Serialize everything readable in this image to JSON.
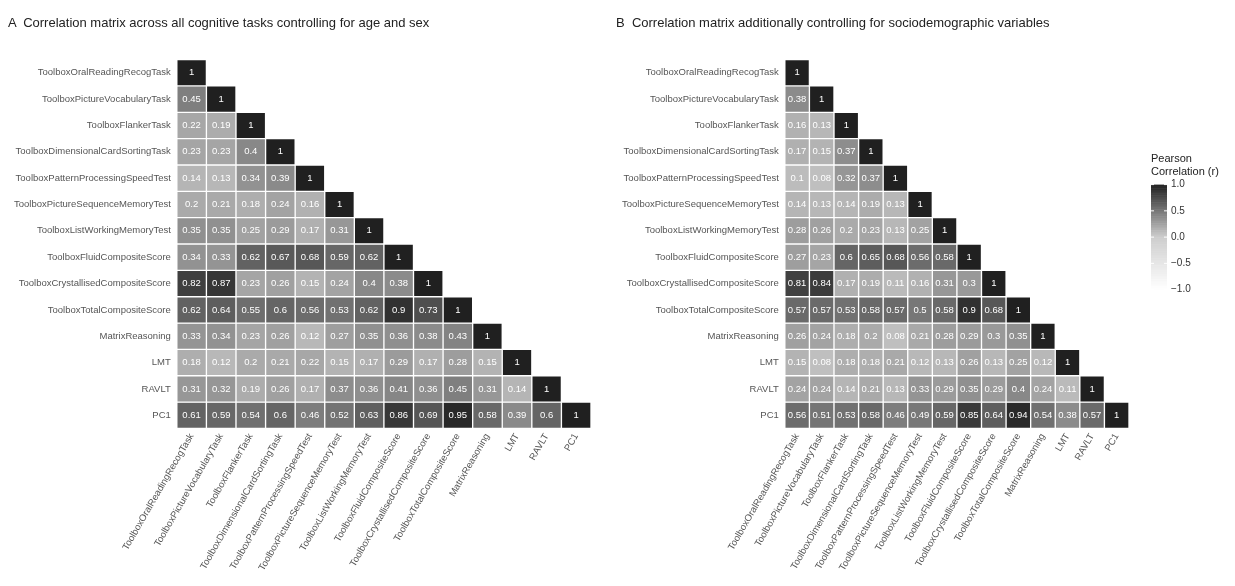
{
  "chart_data": [
    {
      "type": "heatmap",
      "title": "A  Correlation matrix across all cognitive tasks controlling for age and sex",
      "categories": [
        "ToolboxOralReadingRecogTask",
        "ToolboxPictureVocabularyTask",
        "ToolboxFlankerTask",
        "ToolboxDimensionalCardSortingTask",
        "ToolboxPatternProcessingSpeedTest",
        "ToolboxPictureSequenceMemoryTest",
        "ToolboxListWorkingMemoryTest",
        "ToolboxFluidCompositeScore",
        "ToolboxCrystallisedCompositeScore",
        "ToolboxTotalCompositeScore",
        "MatrixReasoning",
        "LMT",
        "RAVLT",
        "PC1"
      ],
      "y_categories": [
        "ToolboxOralReadingRecogTask",
        "ToolboxPictureVocabularyTask",
        "ToolboxFlankerTask",
        "ToolboxDimensionalCardSortingTask",
        "ToolboxPatternProcessingSpeedTest",
        "ToolboxPictureSequenceMemoryTest",
        "ToolboxListWorkingMemoryTest",
        "ToolboxFluidCompositeScore",
        "ToolboxCrystallisedCompositeScore",
        "ToolboxTotalCompositeScore",
        "MatrixReasoning",
        "LMT",
        "RAVLT",
        "PC1"
      ],
      "cells": [
        [
          1,
          null,
          null,
          null,
          null,
          null,
          null,
          null,
          null,
          null,
          null,
          null,
          null,
          null
        ],
        [
          0.45,
          1,
          null,
          null,
          null,
          null,
          null,
          null,
          null,
          null,
          null,
          null,
          null,
          null
        ],
        [
          0.22,
          0.19,
          1,
          null,
          null,
          null,
          null,
          null,
          null,
          null,
          null,
          null,
          null,
          null
        ],
        [
          0.23,
          0.23,
          0.4,
          1,
          null,
          null,
          null,
          null,
          null,
          null,
          null,
          null,
          null,
          null
        ],
        [
          0.14,
          0.13,
          0.34,
          0.39,
          1,
          null,
          null,
          null,
          null,
          null,
          null,
          null,
          null,
          null
        ],
        [
          0.2,
          0.21,
          0.18,
          0.24,
          0.16,
          1,
          null,
          null,
          null,
          null,
          null,
          null,
          null,
          null
        ],
        [
          0.35,
          0.35,
          0.25,
          0.29,
          0.17,
          0.31,
          1,
          null,
          null,
          null,
          null,
          null,
          null,
          null
        ],
        [
          0.34,
          0.33,
          0.62,
          0.67,
          0.68,
          0.59,
          0.62,
          1,
          null,
          null,
          null,
          null,
          null,
          null
        ],
        [
          0.82,
          0.87,
          0.23,
          0.26,
          0.15,
          0.24,
          0.4,
          0.38,
          1,
          null,
          null,
          null,
          null,
          null
        ],
        [
          0.62,
          0.64,
          0.55,
          0.6,
          0.56,
          0.53,
          0.62,
          0.9,
          0.73,
          1,
          null,
          null,
          null,
          null
        ],
        [
          0.33,
          0.34,
          0.23,
          0.26,
          0.12,
          0.27,
          0.35,
          0.36,
          0.38,
          0.43,
          1,
          null,
          null,
          null
        ],
        [
          0.18,
          0.12,
          0.2,
          0.21,
          0.22,
          0.15,
          0.17,
          0.29,
          0.17,
          0.28,
          0.15,
          1,
          null,
          null
        ],
        [
          0.31,
          0.32,
          0.19,
          0.26,
          0.17,
          0.37,
          0.36,
          0.41,
          0.36,
          0.45,
          0.31,
          0.14,
          1,
          null
        ],
        [
          0.61,
          0.59,
          0.54,
          0.6,
          0.46,
          0.52,
          0.63,
          0.86,
          0.69,
          0.95,
          0.58,
          0.39,
          0.6,
          1
        ]
      ],
      "data_labels": true
    },
    {
      "type": "heatmap",
      "title": "B  Correlation matrix additionally controlling for sociodemographic variables",
      "categories": [
        "ToolboxOralReadingRecogTask",
        "ToolboxPictureVocabularyTask",
        "ToolboxFlankerTask",
        "ToolboxDimensionalCardSortingTask",
        "ToolboxPatternProcessingSpeedTest",
        "ToolboxPictureSequenceMemoryTest",
        "ToolboxListWorkingMemoryTest",
        "ToolboxFluidCompositeScore",
        "ToolboxCrystallisedCompositeScore",
        "ToolboxTotalCompositeScore",
        "MatrixReasoning",
        "LMT",
        "RAVLT",
        "PC1"
      ],
      "y_categories": [
        "ToolboxOralReadingRecogTask",
        "ToolboxPictureVocabularyTask",
        "ToolboxFlankerTask",
        "ToolboxDimensionalCardSortingTask",
        "ToolboxPatternProcessingSpeedTest",
        "ToolboxPictureSequenceMemoryTest",
        "ToolboxListWorkingMemoryTest",
        "ToolboxFluidCompositeScore",
        "ToolboxCrystallisedCompositeScore",
        "ToolboxTotalCompositeScore",
        "MatrixReasoning",
        "LMT",
        "RAVLT",
        "PC1"
      ],
      "cells": [
        [
          1,
          null,
          null,
          null,
          null,
          null,
          null,
          null,
          null,
          null,
          null,
          null,
          null,
          null
        ],
        [
          0.38,
          1,
          null,
          null,
          null,
          null,
          null,
          null,
          null,
          null,
          null,
          null,
          null,
          null
        ],
        [
          0.16,
          0.13,
          1,
          null,
          null,
          null,
          null,
          null,
          null,
          null,
          null,
          null,
          null,
          null
        ],
        [
          0.17,
          0.15,
          0.37,
          1,
          null,
          null,
          null,
          null,
          null,
          null,
          null,
          null,
          null,
          null
        ],
        [
          0.1,
          0.08,
          0.32,
          0.37,
          1,
          null,
          null,
          null,
          null,
          null,
          null,
          null,
          null,
          null
        ],
        [
          0.14,
          0.13,
          0.14,
          0.19,
          0.13,
          1,
          null,
          null,
          null,
          null,
          null,
          null,
          null,
          null
        ],
        [
          0.28,
          0.26,
          0.2,
          0.23,
          0.13,
          0.25,
          1,
          null,
          null,
          null,
          null,
          null,
          null,
          null
        ],
        [
          0.27,
          0.23,
          0.6,
          0.65,
          0.68,
          0.56,
          0.58,
          1,
          null,
          null,
          null,
          null,
          null,
          null
        ],
        [
          0.81,
          0.84,
          0.17,
          0.19,
          0.11,
          0.16,
          0.31,
          0.3,
          1,
          null,
          null,
          null,
          null,
          null
        ],
        [
          0.57,
          0.57,
          0.53,
          0.58,
          0.57,
          0.5,
          0.58,
          0.9,
          0.68,
          1,
          null,
          null,
          null,
          null
        ],
        [
          0.26,
          0.24,
          0.18,
          0.2,
          0.08,
          0.21,
          0.28,
          0.29,
          0.3,
          0.35,
          1,
          null,
          null,
          null
        ],
        [
          0.15,
          0.08,
          0.18,
          0.18,
          0.21,
          0.12,
          0.13,
          0.26,
          0.13,
          0.25,
          0.12,
          1,
          null,
          null
        ],
        [
          0.24,
          0.24,
          0.14,
          0.21,
          0.13,
          0.33,
          0.29,
          0.35,
          0.29,
          0.4,
          0.24,
          0.11,
          1,
          null
        ],
        [
          0.56,
          0.51,
          0.53,
          0.58,
          0.46,
          0.49,
          0.59,
          0.85,
          0.64,
          0.94,
          0.54,
          0.38,
          0.57,
          1
        ]
      ],
      "data_labels": true,
      "clabel": "Pearson Correlation (r)",
      "clim": [
        -1,
        1
      ],
      "cticks": [
        {
          "value": 1,
          "label": "1.0"
        },
        {
          "value": 0.5,
          "label": "0.5"
        },
        {
          "value": 0,
          "label": "0.0"
        },
        {
          "value": -0.5,
          "label": "−0.5"
        },
        {
          "value": -1,
          "label": "−1.0"
        }
      ]
    }
  ]
}
